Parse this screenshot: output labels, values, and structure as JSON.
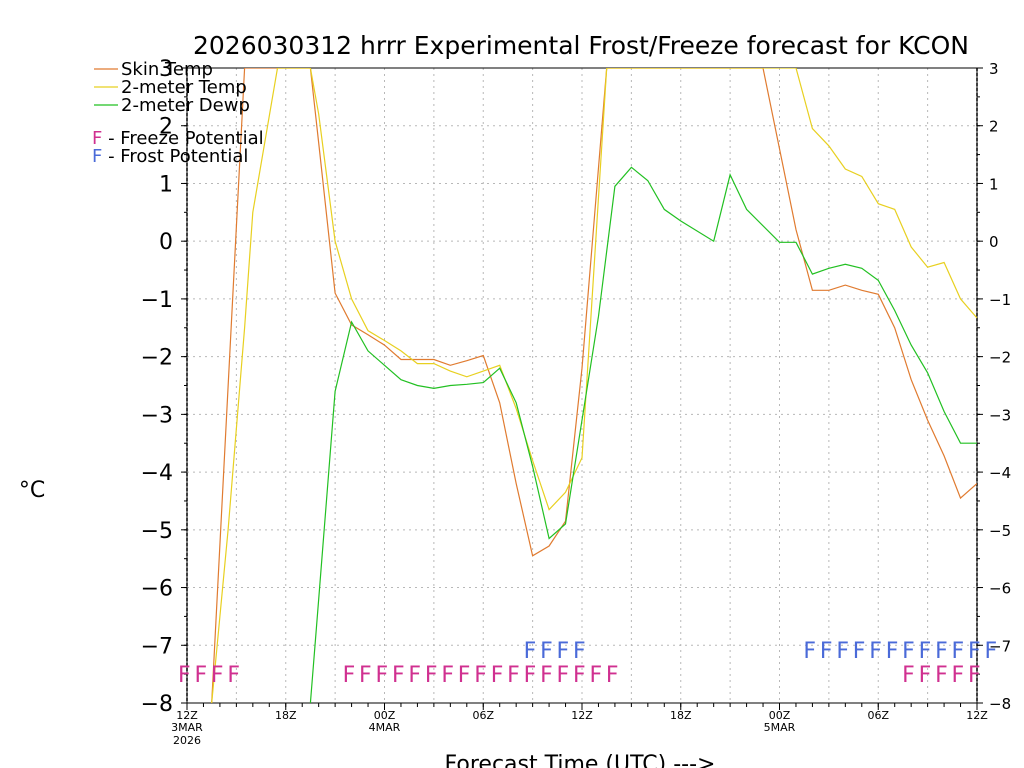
{
  "chart_data": {
    "type": "line",
    "title": "2026030312 hrrr Experimental Frost/Freeze forecast for KCON",
    "xlabel": "Forecast Time (UTC) --->",
    "ylabel": "°C",
    "ylim": [
      -8,
      3
    ],
    "xlim": [
      0,
      48
    ],
    "y_ticks": [
      3,
      2,
      1,
      0,
      -1,
      -2,
      -3,
      -4,
      -5,
      -6,
      -7,
      -8
    ],
    "y_tick_labels": [
      "3",
      "2",
      "1",
      "0",
      "−1",
      "−2",
      "−3",
      "−4",
      "−5",
      "−6",
      "−7",
      "−8"
    ],
    "x_ticks": [
      {
        "h": 0,
        "label": "12Z",
        "sub1": "3MAR",
        "sub2": "2026"
      },
      {
        "h": 6,
        "label": "18Z",
        "sub1": "",
        "sub2": ""
      },
      {
        "h": 12,
        "label": "00Z",
        "sub1": "4MAR",
        "sub2": ""
      },
      {
        "h": 18,
        "label": "06Z",
        "sub1": "",
        "sub2": ""
      },
      {
        "h": 24,
        "label": "12Z",
        "sub1": "",
        "sub2": ""
      },
      {
        "h": 30,
        "label": "18Z",
        "sub1": "",
        "sub2": ""
      },
      {
        "h": 36,
        "label": "00Z",
        "sub1": "5MAR",
        "sub2": ""
      },
      {
        "h": 42,
        "label": "06Z",
        "sub1": "",
        "sub2": ""
      },
      {
        "h": 48,
        "label": "12Z",
        "sub1": "",
        "sub2": ""
      }
    ],
    "grid": true,
    "legend": [
      {
        "label": "Skin Temp",
        "color": "#e07b30"
      },
      {
        "label": "2-meter Temp",
        "color": "#e8d020"
      },
      {
        "label": "2-meter Dewp",
        "color": "#22c022"
      }
    ],
    "potential_legend": [
      {
        "letter": "F",
        "text": " - Freeze Potential",
        "color": "#d03090"
      },
      {
        "letter": "F",
        "text": " - Frost Potential",
        "color": "#4a6ad8"
      }
    ],
    "series": [
      {
        "name": "Skin Temp",
        "color": "#e07b30",
        "x": [
          1.5,
          3.5,
          7.5,
          8,
          9,
          10,
          11,
          12,
          13,
          14,
          15,
          16,
          17,
          18,
          19,
          20,
          21,
          22,
          23,
          24,
          25.5,
          35,
          36,
          37,
          38,
          39,
          40,
          41,
          42,
          43,
          44,
          45,
          46,
          47,
          48
        ],
        "y": [
          -8,
          3,
          3,
          1.7,
          -0.9,
          -1.45,
          -1.62,
          -1.8,
          -2.05,
          -2.05,
          -2.05,
          -2.15,
          -2.07,
          -1.98,
          -2.8,
          -4.2,
          -5.45,
          -5.28,
          -4.85,
          -2.2,
          3,
          3,
          1.6,
          0.2,
          -0.85,
          -0.85,
          -0.76,
          -0.85,
          -0.92,
          -1.5,
          -2.4,
          -3.1,
          -3.72,
          -4.45,
          -4.2
        ]
      },
      {
        "name": "2-meter Temp",
        "color": "#e8d020",
        "x": [
          1.5,
          2.5,
          3.5,
          4,
          5.5,
          7.5,
          8,
          9,
          10,
          11,
          12,
          13,
          14,
          15,
          16,
          17,
          18,
          19,
          20,
          21,
          22,
          23,
          24,
          25.5,
          37,
          38,
          39,
          40,
          41,
          42,
          43,
          44,
          45,
          46,
          47,
          48
        ],
        "y": [
          -8,
          -5,
          -1.5,
          0.5,
          3,
          3,
          2.2,
          0,
          -1,
          -1.55,
          -1.72,
          -1.9,
          -2.12,
          -2.12,
          -2.25,
          -2.35,
          -2.25,
          -2.15,
          -2.9,
          -3.8,
          -4.65,
          -4.35,
          -3.75,
          3,
          3,
          1.95,
          1.65,
          1.25,
          1.12,
          0.65,
          0.55,
          -0.1,
          -0.45,
          -0.37,
          -1.0,
          -1.33
        ]
      },
      {
        "name": "2-meter Dewp",
        "color": "#22c022",
        "x": [
          7.5,
          8,
          9,
          10,
          11,
          12,
          13,
          14,
          15,
          16,
          17,
          18,
          19,
          20,
          21,
          22,
          23,
          25,
          26,
          27,
          28,
          29,
          30,
          32,
          33,
          34,
          36,
          37,
          38,
          39,
          40,
          41,
          42,
          43,
          44,
          45,
          46,
          47,
          48
        ],
        "y": [
          -8,
          -6.2,
          -2.6,
          -1.4,
          -1.9,
          -2.15,
          -2.4,
          -2.5,
          -2.55,
          -2.5,
          -2.48,
          -2.45,
          -2.2,
          -2.8,
          -3.9,
          -5.15,
          -4.9,
          -1.3,
          0.95,
          1.28,
          1.05,
          0.55,
          0.35,
          0.0,
          1.15,
          0.55,
          -0.02,
          -0.02,
          -0.57,
          -0.47,
          -0.4,
          -0.47,
          -0.68,
          -1.2,
          -1.8,
          -2.28,
          -2.95,
          -3.5,
          -3.5
        ]
      }
    ],
    "frost_freeze_markers": [
      {
        "letters": "FFFF",
        "color": "#d03090",
        "row": "freeze",
        "start_h": 0
      },
      {
        "letters": "FFFFFFFFFFFFFFFFF",
        "color": "#d03090",
        "row": "freeze",
        "start_h": 10
      },
      {
        "letters": "FFFFF",
        "color": "#d03090",
        "row": "freeze",
        "start_h": 44
      },
      {
        "letters": "FFFF",
        "color": "#4a6ad8",
        "row": "frost",
        "start_h": 21
      },
      {
        "letters": "FFFFFFFFFFFF",
        "color": "#4a6ad8",
        "row": "frost",
        "start_h": 38
      }
    ]
  }
}
